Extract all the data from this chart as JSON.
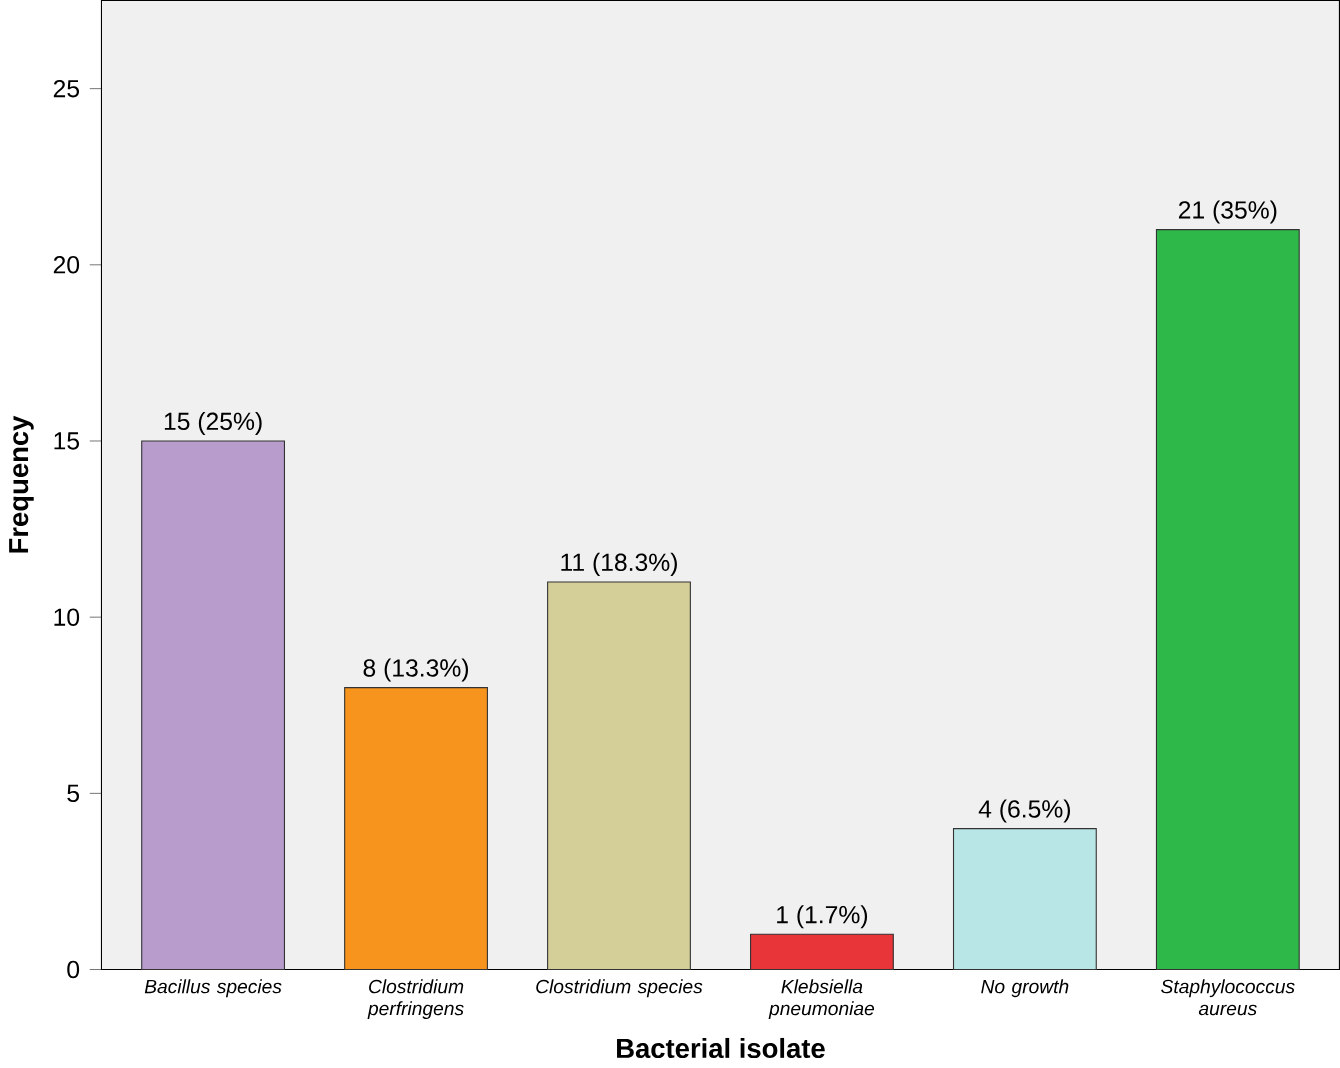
{
  "chart_data": {
    "type": "bar",
    "xlabel": "Bacterial isolate",
    "ylabel": "Frequency",
    "categories": [
      "Bacillus species",
      "Clostridium perfringens",
      "Clostridium species",
      "Klebsiella pneumoniae",
      "No growth",
      "Staphylococcus aureus"
    ],
    "values": [
      15,
      8,
      11,
      1,
      4,
      21
    ],
    "colors": [
      "#b89ccb",
      "#f7941d",
      "#d4cf98",
      "#e8353a",
      "#b8e6e6",
      "#2fb84a"
    ],
    "value_labels": [
      "15 (25%)",
      "8 (13.3%)",
      "11 (18.3%)",
      "1 (1.7%)",
      "4 (6.5%)",
      "21 (35%)"
    ],
    "ylim": [
      0,
      27.5
    ],
    "yticks": [
      0,
      5,
      10,
      15,
      20,
      25
    ]
  }
}
